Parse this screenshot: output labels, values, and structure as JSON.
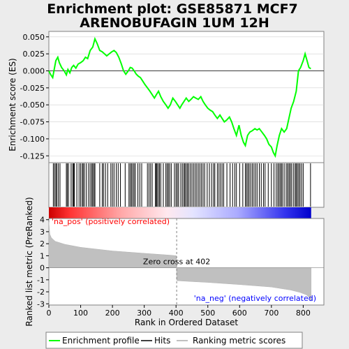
{
  "chart_data": {
    "title_line1": "Enrichment plot: GSE85871 MCF7",
    "title_line2": "ARENOBUFAGIN 1UM 12H",
    "top_panel": {
      "type": "line",
      "ylabel": "Enrichment score (ES)",
      "ylim": [
        -0.135,
        0.058
      ],
      "yticks": [
        0.05,
        0.025,
        0.0,
        -0.025,
        -0.05,
        -0.075,
        -0.1,
        -0.125
      ],
      "ytick_labels": [
        "0.050",
        "0.025",
        "0.000",
        "-0.025",
        "-0.050",
        "-0.075",
        "-0.100",
        "-0.125"
      ],
      "series": [
        {
          "name": "Enrichment profile",
          "color": "#00ff00",
          "x": [
            0,
            5,
            12,
            18,
            22,
            28,
            33,
            40,
            48,
            55,
            60,
            66,
            72,
            78,
            85,
            92,
            100,
            108,
            115,
            122,
            130,
            138,
            145,
            152,
            160,
            168,
            175,
            182,
            190,
            198,
            205,
            212,
            220,
            228,
            235,
            242,
            250,
            256,
            262,
            268,
            275,
            282,
            288,
            295,
            302,
            310,
            318,
            325,
            332,
            338,
            345,
            352,
            360,
            368,
            375,
            382,
            390,
            398,
            405,
            412,
            418,
            425,
            432,
            440,
            447,
            455,
            462,
            470,
            478,
            485,
            492,
            500,
            508,
            515,
            522,
            530,
            538,
            545,
            552,
            560,
            568,
            575,
            582,
            590,
            598,
            605,
            612,
            618,
            625,
            632,
            640,
            648,
            655,
            662,
            670,
            678,
            685,
            692,
            700,
            706,
            712,
            718,
            725,
            732,
            740,
            748,
            755,
            762,
            770,
            778,
            785,
            792,
            800,
            806,
            812,
            818,
            824
          ],
          "y": [
            0.0,
            -0.005,
            -0.01,
            0.005,
            0.015,
            0.02,
            0.012,
            0.005,
            0.0,
            -0.006,
            0.002,
            -0.003,
            0.005,
            0.008,
            0.004,
            0.01,
            0.012,
            0.015,
            0.02,
            0.018,
            0.03,
            0.035,
            0.047,
            0.04,
            0.03,
            0.028,
            0.025,
            0.022,
            0.025,
            0.028,
            0.03,
            0.027,
            0.02,
            0.01,
            0.0,
            -0.005,
            0.0,
            0.005,
            0.004,
            0.0,
            -0.005,
            -0.008,
            -0.01,
            -0.015,
            -0.02,
            -0.025,
            -0.03,
            -0.035,
            -0.04,
            -0.035,
            -0.03,
            -0.038,
            -0.045,
            -0.05,
            -0.055,
            -0.05,
            -0.04,
            -0.045,
            -0.05,
            -0.055,
            -0.05,
            -0.045,
            -0.04,
            -0.045,
            -0.042,
            -0.038,
            -0.04,
            -0.042,
            -0.038,
            -0.045,
            -0.05,
            -0.055,
            -0.058,
            -0.06,
            -0.065,
            -0.07,
            -0.065,
            -0.07,
            -0.075,
            -0.072,
            -0.068,
            -0.075,
            -0.085,
            -0.095,
            -0.08,
            -0.095,
            -0.105,
            -0.11,
            -0.095,
            -0.09,
            -0.088,
            -0.085,
            -0.087,
            -0.085,
            -0.09,
            -0.095,
            -0.1,
            -0.108,
            -0.112,
            -0.12,
            -0.125,
            -0.11,
            -0.095,
            -0.085,
            -0.09,
            -0.085,
            -0.07,
            -0.055,
            -0.045,
            -0.03,
            0.0,
            0.005,
            0.015,
            0.025,
            0.015,
            0.005,
            0.003
          ]
        }
      ]
    },
    "hits": {
      "name": "Hits",
      "x": [
        14,
        18,
        22,
        25,
        30,
        35,
        55,
        58,
        62,
        70,
        75,
        78,
        80,
        88,
        95,
        100,
        105,
        108,
        112,
        118,
        125,
        130,
        135,
        138,
        142,
        145,
        160,
        168,
        172,
        178,
        185,
        195,
        200,
        205,
        212,
        218,
        225,
        240,
        252,
        256,
        260,
        264,
        268,
        272,
        280,
        286,
        292,
        310,
        315,
        320,
        325,
        335,
        338,
        340,
        344,
        348,
        352,
        360,
        368,
        372,
        376,
        380,
        385,
        395,
        400,
        404,
        408,
        415,
        420,
        425,
        428,
        432,
        436,
        440,
        445,
        450,
        455,
        460,
        465,
        470,
        475,
        480,
        485,
        490,
        498,
        505,
        512,
        518,
        522,
        530,
        535,
        540,
        545,
        550,
        560,
        570,
        578,
        585,
        590,
        600,
        610,
        618,
        622,
        626,
        630,
        635,
        640,
        645,
        650,
        655,
        662,
        668,
        675,
        680,
        690,
        700,
        708,
        715,
        720,
        724,
        728,
        732,
        736,
        742,
        748,
        752,
        756,
        760,
        764,
        770,
        775,
        778,
        782,
        786,
        790,
        795,
        800,
        823
      ]
    },
    "ranking": {
      "name": "Ranking metric scores",
      "ylabel": "Ranked list metric (PreRanked)",
      "ylim": [
        -3.1,
        4.1
      ],
      "yticks": [
        4,
        3,
        2,
        1,
        0,
        -1,
        -2,
        -3
      ],
      "ytick_labels": [
        "4",
        "3",
        "2",
        "1",
        "0",
        "-1",
        "-2",
        "-3"
      ],
      "x": [
        0,
        3,
        8,
        20,
        50,
        100,
        200,
        300,
        380,
        401,
        402,
        405,
        450,
        500,
        600,
        700,
        760,
        790,
        810,
        820,
        825
      ],
      "y": [
        3.8,
        2.8,
        2.5,
        2.2,
        1.95,
        1.7,
        1.4,
        1.2,
        1.05,
        1.0,
        -1.05,
        -1.08,
        -1.15,
        -1.22,
        -1.4,
        -1.6,
        -1.85,
        -2.05,
        -2.25,
        -2.5,
        -2.8
      ],
      "color": "#c0c0c0",
      "zero_cross_label": "Zero cross at 402",
      "pos_label": "'na_pos' (positively correlated)",
      "neg_label": "'na_neg' (negatively correlated)"
    },
    "xlabel": "Rank in Ordered Dataset",
    "xlim": [
      0,
      865
    ],
    "xticks": [
      0,
      100,
      200,
      300,
      400,
      500,
      600,
      700,
      800
    ],
    "xtick_labels": [
      "0",
      "100",
      "200",
      "300",
      "400",
      "500",
      "600",
      "700",
      "800"
    ],
    "n_genes": 825,
    "legend": {
      "placement": "bottom",
      "items": [
        {
          "label": "Enrichment profile",
          "kind": "line",
          "color": "#00ff00"
        },
        {
          "label": "Hits",
          "kind": "line",
          "color": "#000000"
        },
        {
          "label": "Ranking metric scores",
          "kind": "line",
          "color": "#c0c0c0"
        }
      ]
    },
    "colors": {
      "pos_label": "#ff0000",
      "neg_label": "#0000ff",
      "zero_line": "#808080"
    }
  }
}
